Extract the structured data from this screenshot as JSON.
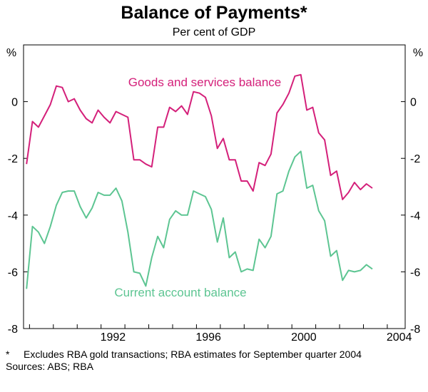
{
  "chart_data": {
    "type": "line",
    "title": "Balance of Payments*",
    "subtitle": "Per cent of GDP",
    "ylabel_left": "%",
    "ylabel_right": "%",
    "ylim": [
      -8,
      2
    ],
    "yticks": [
      0,
      -2,
      -4,
      -6,
      -8
    ],
    "xlim": [
      1988.75,
      2004.75
    ],
    "xticks": [
      1992,
      1996,
      2000,
      2004
    ],
    "grid": false,
    "series": [
      {
        "name": "Goods and services balance",
        "color": "#d4207a",
        "start": 1988.875,
        "step": 0.25,
        "values": [
          -2.2,
          -0.7,
          -0.9,
          -0.5,
          -0.1,
          0.55,
          0.5,
          0.0,
          0.1,
          -0.3,
          -0.6,
          -0.75,
          -0.3,
          -0.55,
          -0.75,
          -0.35,
          -0.45,
          -0.55,
          -2.05,
          -2.05,
          -2.2,
          -2.3,
          -0.9,
          -0.9,
          -0.2,
          -0.35,
          -0.15,
          -0.45,
          0.35,
          0.3,
          0.15,
          -0.5,
          -1.65,
          -1.3,
          -2.05,
          -2.05,
          -2.8,
          -2.8,
          -3.15,
          -2.15,
          -2.25,
          -1.85,
          -0.4,
          -0.1,
          0.3,
          0.9,
          0.95,
          -0.3,
          -0.2,
          -1.1,
          -1.35,
          -2.6,
          -2.45,
          -3.45,
          -3.2,
          -2.85,
          -3.1,
          -2.9,
          -3.05
        ]
      },
      {
        "name": "Current account balance",
        "color": "#5dc592",
        "start": 1988.875,
        "step": 0.25,
        "values": [
          -6.6,
          -4.4,
          -4.6,
          -5.0,
          -4.4,
          -3.65,
          -3.2,
          -3.15,
          -3.15,
          -3.7,
          -4.1,
          -3.75,
          -3.2,
          -3.3,
          -3.3,
          -3.05,
          -3.5,
          -4.6,
          -6.0,
          -6.05,
          -6.5,
          -5.5,
          -4.75,
          -5.15,
          -4.15,
          -3.85,
          -4.0,
          -4.0,
          -3.15,
          -3.25,
          -3.35,
          -3.8,
          -4.95,
          -4.1,
          -5.5,
          -5.3,
          -6.0,
          -5.9,
          -5.95,
          -4.85,
          -5.15,
          -4.75,
          -3.25,
          -3.15,
          -2.45,
          -1.95,
          -1.75,
          -3.05,
          -2.95,
          -3.85,
          -4.2,
          -5.45,
          -5.25,
          -6.3,
          -5.95,
          -6.0,
          -5.95,
          -5.75,
          -5.9
        ]
      }
    ],
    "annotations": [
      {
        "text": "Goods and services balance",
        "series": 0
      },
      {
        "text": "Current account balance",
        "series": 1
      }
    ]
  },
  "notes": {
    "footnote_marker": "*",
    "footnote": "Excludes RBA gold transactions; RBA estimates for September quarter 2004",
    "sources": "Sources: ABS; RBA"
  }
}
